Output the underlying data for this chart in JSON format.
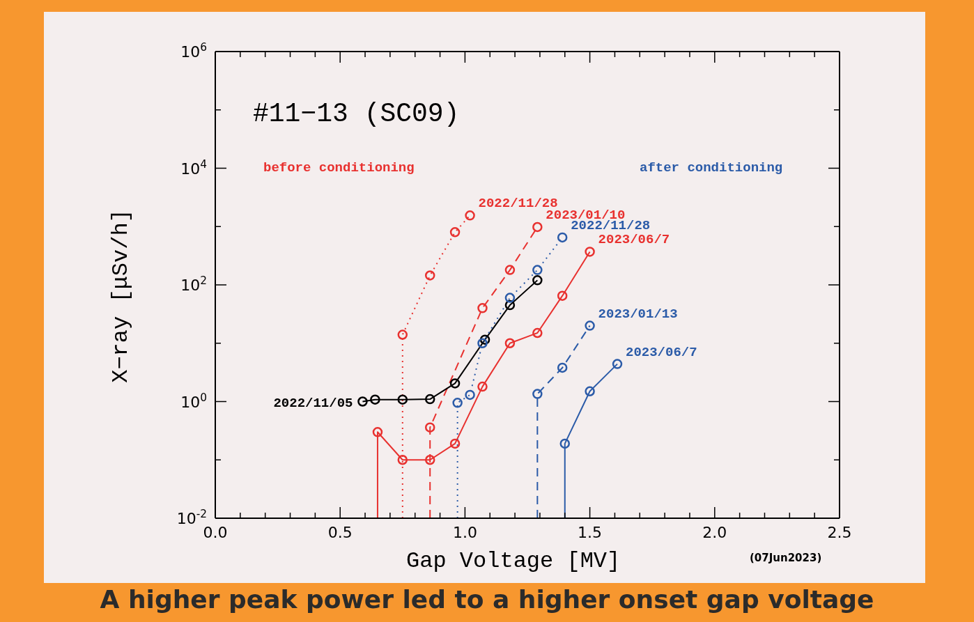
{
  "chart_data": {
    "type": "line",
    "title": "#11−13 (SC09)",
    "xlabel": "Gap Voltage [MV]",
    "ylabel": "X−ray [μSv/h]",
    "log": "y",
    "marker": "circle",
    "xlim": [
      0,
      2.5
    ],
    "ylim": [
      0.01,
      1000000
    ],
    "xticks": [
      {
        "value": 0,
        "label": "0.0"
      },
      {
        "value": 0.1,
        "label": null
      },
      {
        "value": 0.2,
        "label": null
      },
      {
        "value": 0.3,
        "label": null
      },
      {
        "value": 0.4,
        "label": null
      },
      0.5,
      {
        "value": 0.6,
        "label": null
      },
      {
        "value": 0.7,
        "label": null
      },
      {
        "value": 0.8,
        "label": null
      },
      {
        "value": 0.9,
        "label": null
      },
      {
        "value": 1,
        "label": "1.0"
      },
      {
        "value": 1.1,
        "label": null
      },
      {
        "value": 1.2,
        "label": null
      },
      {
        "value": 1.3,
        "label": null
      },
      {
        "value": 1.4,
        "label": null
      },
      1.5,
      {
        "value": 1.6,
        "label": null
      },
      {
        "value": 1.7,
        "label": null
      },
      {
        "value": 1.8,
        "label": null
      },
      {
        "value": 1.9,
        "label": null
      },
      {
        "value": 2,
        "label": "2.0"
      },
      {
        "value": 2.1,
        "label": null
      },
      {
        "value": 2.2,
        "label": null
      },
      {
        "value": 2.3,
        "label": null
      },
      {
        "value": 2.4,
        "label": null
      },
      2.5
    ],
    "yticks": [
      {
        "value": 0.01,
        "label": "10$^{-2}$"
      },
      {
        "value": 0.1,
        "label": null
      },
      {
        "value": 1,
        "label": "10$^{0}$"
      },
      {
        "value": 10,
        "label": null
      },
      {
        "value": 100,
        "label": "10$^{2}$"
      },
      {
        "value": 1000,
        "label": null
      },
      {
        "value": 10000,
        "label": "10$^{4}$"
      },
      {
        "value": 100000,
        "label": null
      },
      {
        "value": 1000000,
        "label": "10$^{6}$"
      }
    ],
    "series": [
      {
        "name": "2022/11/28",
        "color": "#e8312f",
        "line_style": "dotted",
        "x": [
          0.75,
          0.75,
          0.86,
          0.96,
          1.02
        ],
        "values": [
          0.01,
          14,
          145,
          800,
          1550
        ]
      },
      {
        "name": "2023/01/10",
        "color": "#e8312f",
        "line_style": "dashed",
        "x": [
          0.86,
          0.86,
          1.07,
          1.18,
          1.29
        ],
        "values": [
          0.01,
          0.36,
          40,
          180,
          980
        ]
      },
      {
        "name": "2023/06/7",
        "color": "#e8312f",
        "line_style": "solid",
        "x": [
          0.65,
          0.65,
          0.75,
          0.86,
          0.96,
          1.07,
          1.18,
          1.29,
          1.39,
          1.5
        ],
        "values": [
          0.01,
          0.3,
          0.1,
          0.1,
          0.19,
          1.8,
          10,
          15,
          65,
          370
        ]
      },
      {
        "name": "2022/11/05",
        "color": "#000000",
        "line_style": "solid",
        "x": [
          0.59,
          0.64,
          0.75,
          0.86,
          0.96,
          1.08,
          1.18,
          1.29
        ],
        "values": [
          1,
          1.08,
          1.08,
          1.1,
          2.05,
          11.5,
          45,
          120
        ]
      },
      {
        "name": "2022/11/28",
        "color": "#2b5ba8",
        "line_style": "dotted",
        "x": [
          0.97,
          0.97,
          1.02,
          1.07,
          1.18,
          1.29,
          1.39
        ],
        "values": [
          0.01,
          0.95,
          1.3,
          10,
          60,
          180,
          650
        ]
      },
      {
        "name": "2023/01/13",
        "color": "#2b5ba8",
        "line_style": "dashed",
        "x": [
          1.29,
          1.29,
          1.39,
          1.5
        ],
        "values": [
          0.01,
          1.35,
          3.8,
          20
        ]
      },
      {
        "name": "2023/06/7",
        "color": "#2b5ba8",
        "line_style": "solid",
        "x": [
          1.4,
          1.4,
          1.5,
          1.61
        ],
        "values": [
          0.01,
          0.19,
          1.5,
          4.4
        ]
      }
    ],
    "annotations": [
      "before conditioning",
      "after conditioning",
      "(07Jun2023)",
      "A higher peak power led to a higher onset gap voltage"
    ]
  }
}
